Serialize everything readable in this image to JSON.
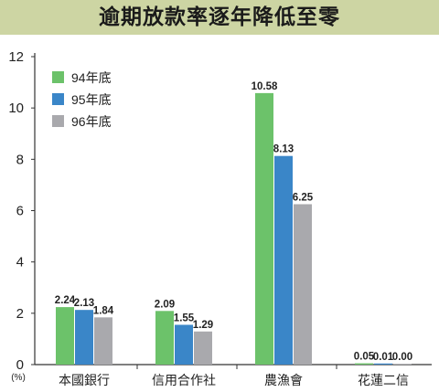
{
  "title": "逾期放款率逐年降低至零",
  "colors": {
    "title_bg": "#cdd5a3"
  },
  "chart_data": {
    "type": "bar",
    "title": "逾期放款率逐年降低至零",
    "unit_label": "(%)",
    "categories": [
      "本國銀行",
      "信用合作社",
      "農漁會",
      "花蓮二信"
    ],
    "series": [
      {
        "name": "94年底",
        "color": "#6cc26a",
        "values": [
          2.24,
          2.09,
          10.58,
          0.05
        ],
        "labels": [
          "2.24",
          "2.09",
          "10.58",
          "0.05"
        ]
      },
      {
        "name": "95年底",
        "color": "#3a86c8",
        "values": [
          2.13,
          1.55,
          8.13,
          0.01
        ],
        "labels": [
          "2.13",
          "1.55",
          "8.13",
          "0.01"
        ]
      },
      {
        "name": "96年底",
        "color": "#a9a9ad",
        "values": [
          1.84,
          1.29,
          6.25,
          0.0
        ],
        "labels": [
          "1.84",
          "1.29",
          "6.25",
          "0.00"
        ]
      }
    ],
    "ylim": [
      0,
      12
    ],
    "yticks": [
      "0",
      "2",
      "4",
      "6",
      "8",
      "10",
      "12"
    ],
    "grid": false,
    "legend_position": "top-left"
  }
}
